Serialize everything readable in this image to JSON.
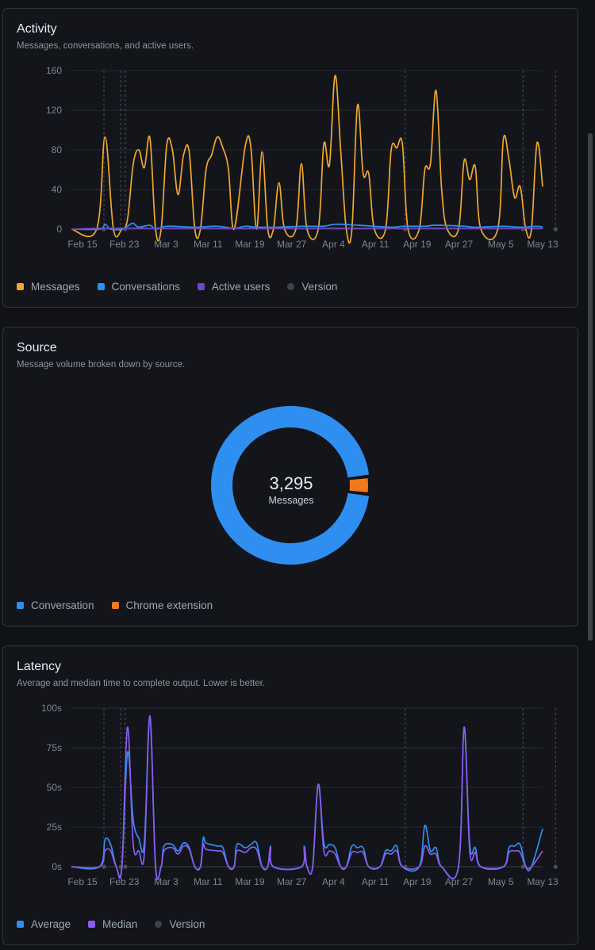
{
  "activity": {
    "title": "Activity",
    "subtitle": "Messages, conversations, and active users.",
    "legend": [
      {
        "label": "Messages",
        "color": "#f0a82c",
        "shape": "square"
      },
      {
        "label": "Conversations",
        "color": "#2f8ff0",
        "shape": "square"
      },
      {
        "label": "Active users",
        "color": "#6e48c9",
        "shape": "square"
      },
      {
        "label": "Version",
        "color": "#3d434b",
        "shape": "dot"
      }
    ]
  },
  "source": {
    "title": "Source",
    "subtitle": "Message volume broken down by source.",
    "total_value": "3,295",
    "total_label": "Messages",
    "legend": [
      {
        "label": "Conversation",
        "color": "#2f8ff0",
        "shape": "square"
      },
      {
        "label": "Chrome extension",
        "color": "#f2781e",
        "shape": "square"
      }
    ]
  },
  "latency": {
    "title": "Latency",
    "subtitle": "Average and median time to complete output. Lower is better.",
    "legend": [
      {
        "label": "Average",
        "color": "#2f8ff0",
        "shape": "square"
      },
      {
        "label": "Median",
        "color": "#8a5cf0",
        "shape": "square"
      },
      {
        "label": "Version",
        "color": "#3d434b",
        "shape": "dot"
      }
    ]
  },
  "chart_data": [
    {
      "type": "line",
      "title": "Activity",
      "x_ticks": [
        "Feb 15",
        "Feb 23",
        "Mar 3",
        "Mar 11",
        "Mar 19",
        "Mar 27",
        "Apr 4",
        "Apr 11",
        "Apr 19",
        "Apr 27",
        "May 5",
        "May 13"
      ],
      "y_ticks": [
        "0",
        "40",
        "80",
        "120",
        "160"
      ],
      "ylim": [
        0,
        160
      ],
      "grid": true,
      "series": [
        {
          "name": "Messages",
          "color": "#f0a82c",
          "points": [
            [
              0,
              0
            ],
            [
              4.5,
              0
            ],
            [
              6,
              93
            ],
            [
              7.5,
              0
            ],
            [
              9,
              0
            ],
            [
              10,
              10
            ],
            [
              11,
              65
            ],
            [
              12,
              80
            ],
            [
              13,
              62
            ],
            [
              14,
              92
            ],
            [
              15,
              0
            ],
            [
              16,
              0
            ],
            [
              17,
              85
            ],
            [
              18,
              80
            ],
            [
              19,
              35
            ],
            [
              20,
              75
            ],
            [
              21,
              78
            ],
            [
              22,
              0
            ],
            [
              23,
              0
            ],
            [
              24,
              60
            ],
            [
              25,
              75
            ],
            [
              26,
              93
            ],
            [
              27,
              82
            ],
            [
              28,
              60
            ],
            [
              29,
              0
            ],
            [
              31,
              84
            ],
            [
              32,
              82
            ],
            [
              33,
              0
            ],
            [
              34,
              78
            ],
            [
              35,
              0
            ],
            [
              36,
              0
            ],
            [
              37,
              47
            ],
            [
              38,
              0
            ],
            [
              40,
              0
            ],
            [
              41,
              66
            ],
            [
              42,
              0
            ],
            [
              44,
              0
            ],
            [
              45,
              86
            ],
            [
              46,
              65
            ],
            [
              47,
              155
            ],
            [
              48,
              80
            ],
            [
              49,
              0
            ],
            [
              50,
              0
            ],
            [
              51,
              125
            ],
            [
              52,
              56
            ],
            [
              53,
              56
            ],
            [
              54,
              0
            ],
            [
              56,
              0
            ],
            [
              57,
              80
            ],
            [
              58,
              82
            ],
            [
              59,
              86
            ],
            [
              60,
              0
            ],
            [
              62,
              0
            ],
            [
              63,
              60
            ],
            [
              64,
              66
            ],
            [
              65,
              140
            ],
            [
              66,
              40
            ],
            [
              67,
              0
            ],
            [
              69,
              0
            ],
            [
              70,
              69
            ],
            [
              71,
              50
            ],
            [
              72,
              63
            ],
            [
              73,
              0
            ],
            [
              76,
              0
            ],
            [
              77,
              91
            ],
            [
              78,
              70
            ],
            [
              79,
              32
            ],
            [
              80,
              43
            ],
            [
              81,
              0
            ],
            [
              82,
              0
            ],
            [
              83,
              87
            ],
            [
              84,
              43
            ]
          ]
        },
        {
          "name": "Conversations",
          "color": "#2f8ff0",
          "points": [
            [
              0,
              0
            ],
            [
              5,
              0
            ],
            [
              6,
              5
            ],
            [
              7,
              0
            ],
            [
              9,
              0
            ],
            [
              10,
              3
            ],
            [
              11,
              6
            ],
            [
              12,
              2
            ],
            [
              14,
              4
            ],
            [
              15,
              0
            ],
            [
              17,
              3
            ],
            [
              22,
              2
            ],
            [
              26,
              3
            ],
            [
              29,
              1
            ],
            [
              31,
              3
            ],
            [
              33,
              2
            ],
            [
              37,
              2
            ],
            [
              41,
              3
            ],
            [
              45,
              3
            ],
            [
              47,
              5
            ],
            [
              51,
              4
            ],
            [
              57,
              2
            ],
            [
              59,
              3
            ],
            [
              63,
              3
            ],
            [
              65,
              4
            ],
            [
              70,
              3
            ],
            [
              72,
              2
            ],
            [
              77,
              3
            ],
            [
              80,
              2
            ],
            [
              83,
              3
            ],
            [
              84,
              2
            ]
          ]
        },
        {
          "name": "Active users",
          "color": "#6e48c9",
          "points": [
            [
              0,
              0
            ],
            [
              6,
              1
            ],
            [
              12,
              1
            ],
            [
              18,
              1
            ],
            [
              24,
              1
            ],
            [
              30,
              1
            ],
            [
              36,
              1
            ],
            [
              42,
              1
            ],
            [
              48,
              1
            ],
            [
              54,
              1
            ],
            [
              60,
              1
            ],
            [
              66,
              1
            ],
            [
              72,
              1
            ],
            [
              78,
              1
            ],
            [
              84,
              1
            ]
          ]
        }
      ],
      "versions": [
        5.8,
        8.8,
        9.6,
        59.5,
        80.5,
        86.3
      ]
    },
    {
      "type": "pie",
      "title": "Source",
      "categories": [
        "Conversation",
        "Chrome extension"
      ],
      "values": [
        3200,
        95
      ],
      "colors": [
        "#2f8ff0",
        "#f2781e"
      ],
      "center_value": "3,295",
      "center_label": "Messages"
    },
    {
      "type": "line",
      "title": "Latency",
      "x_ticks": [
        "Feb 15",
        "Feb 23",
        "Mar 3",
        "Mar 11",
        "Mar 19",
        "Mar 27",
        "Apr 4",
        "Apr 11",
        "Apr 19",
        "Apr 27",
        "May 5",
        "May 13"
      ],
      "y_ticks": [
        "0s",
        "25s",
        "50s",
        "75s",
        "100s"
      ],
      "ylim": [
        0,
        100
      ],
      "grid": true,
      "series": [
        {
          "name": "Average",
          "color": "#2f8ff0",
          "points": [
            [
              0,
              0
            ],
            [
              5,
              0
            ],
            [
              6,
              17
            ],
            [
              7,
              14
            ],
            [
              8,
              0
            ],
            [
              9,
              0
            ],
            [
              10,
              72
            ],
            [
              11,
              30
            ],
            [
              12,
              18
            ],
            [
              13,
              15
            ],
            [
              14,
              95
            ],
            [
              15,
              0
            ],
            [
              16,
              0
            ],
            [
              16.5,
              13
            ],
            [
              18,
              14
            ],
            [
              19,
              10
            ],
            [
              20,
              15
            ],
            [
              21,
              12
            ],
            [
              22,
              0
            ],
            [
              23,
              0
            ],
            [
              23.5,
              18
            ],
            [
              24,
              15
            ],
            [
              26,
              13
            ],
            [
              27,
              12
            ],
            [
              28,
              0
            ],
            [
              29,
              0
            ],
            [
              29.5,
              14
            ],
            [
              31,
              12
            ],
            [
              32,
              14
            ],
            [
              33,
              15
            ],
            [
              34,
              0
            ],
            [
              35,
              0
            ],
            [
              35.5,
              13
            ],
            [
              36,
              0
            ],
            [
              41,
              0
            ],
            [
              41.5,
              13
            ],
            [
              42,
              0
            ],
            [
              43,
              0
            ],
            [
              44,
              52
            ],
            [
              45,
              15
            ],
            [
              46,
              14
            ],
            [
              47,
              12
            ],
            [
              48,
              0
            ],
            [
              49,
              0
            ],
            [
              50,
              13
            ],
            [
              51,
              12
            ],
            [
              52,
              12
            ],
            [
              53,
              0
            ],
            [
              55,
              0
            ],
            [
              56,
              10
            ],
            [
              57,
              10
            ],
            [
              58,
              13
            ],
            [
              59,
              0
            ],
            [
              62,
              0
            ],
            [
              63,
              26
            ],
            [
              64,
              10
            ],
            [
              65,
              12
            ],
            [
              66,
              0
            ],
            [
              69,
              0
            ],
            [
              70,
              88
            ],
            [
              71,
              14
            ],
            [
              72,
              12
            ],
            [
              73,
              0
            ],
            [
              77,
              0
            ],
            [
              78,
              12
            ],
            [
              79,
              13
            ],
            [
              80,
              14
            ],
            [
              81,
              0
            ],
            [
              82,
              0
            ],
            [
              84,
              24
            ]
          ]
        },
        {
          "name": "Median",
          "color": "#8a5cf0",
          "points": [
            [
              0,
              0
            ],
            [
              5,
              0
            ],
            [
              6,
              10
            ],
            [
              7,
              10
            ],
            [
              8,
              0
            ],
            [
              9,
              0
            ],
            [
              10,
              88
            ],
            [
              11,
              15
            ],
            [
              12,
              10
            ],
            [
              13,
              8
            ],
            [
              14,
              95
            ],
            [
              15,
              0
            ],
            [
              16,
              0
            ],
            [
              16.5,
              10
            ],
            [
              18,
              12
            ],
            [
              19,
              8
            ],
            [
              20,
              13
            ],
            [
              21,
              11
            ],
            [
              22,
              0
            ],
            [
              23,
              0
            ],
            [
              23.5,
              14
            ],
            [
              24,
              11
            ],
            [
              26,
              10
            ],
            [
              27,
              9
            ],
            [
              28,
              0
            ],
            [
              29,
              0
            ],
            [
              29.5,
              10
            ],
            [
              31,
              9
            ],
            [
              32,
              12
            ],
            [
              33,
              11
            ],
            [
              34,
              0
            ],
            [
              35,
              0
            ],
            [
              35.5,
              12
            ],
            [
              36,
              0
            ],
            [
              41,
              0
            ],
            [
              41.5,
              12
            ],
            [
              42,
              0
            ],
            [
              43,
              0
            ],
            [
              44,
              52
            ],
            [
              45,
              10
            ],
            [
              46,
              10
            ],
            [
              47,
              8
            ],
            [
              48,
              0
            ],
            [
              49,
              0
            ],
            [
              50,
              9
            ],
            [
              51,
              9
            ],
            [
              52,
              9
            ],
            [
              53,
              0
            ],
            [
              55,
              0
            ],
            [
              56,
              8
            ],
            [
              57,
              8
            ],
            [
              58,
              10
            ],
            [
              59,
              0
            ],
            [
              62,
              0
            ],
            [
              63,
              13
            ],
            [
              64,
              8
            ],
            [
              65,
              8
            ],
            [
              66,
              0
            ],
            [
              69,
              0
            ],
            [
              70,
              88
            ],
            [
              71,
              10
            ],
            [
              72,
              9
            ],
            [
              73,
              0
            ],
            [
              77,
              0
            ],
            [
              78,
              9
            ],
            [
              79,
              10
            ],
            [
              80,
              9
            ],
            [
              81,
              0
            ],
            [
              82,
              0
            ],
            [
              84,
              10
            ]
          ]
        }
      ],
      "versions": [
        5.8,
        8.8,
        9.6,
        59.5,
        80.5,
        86.3
      ]
    }
  ]
}
